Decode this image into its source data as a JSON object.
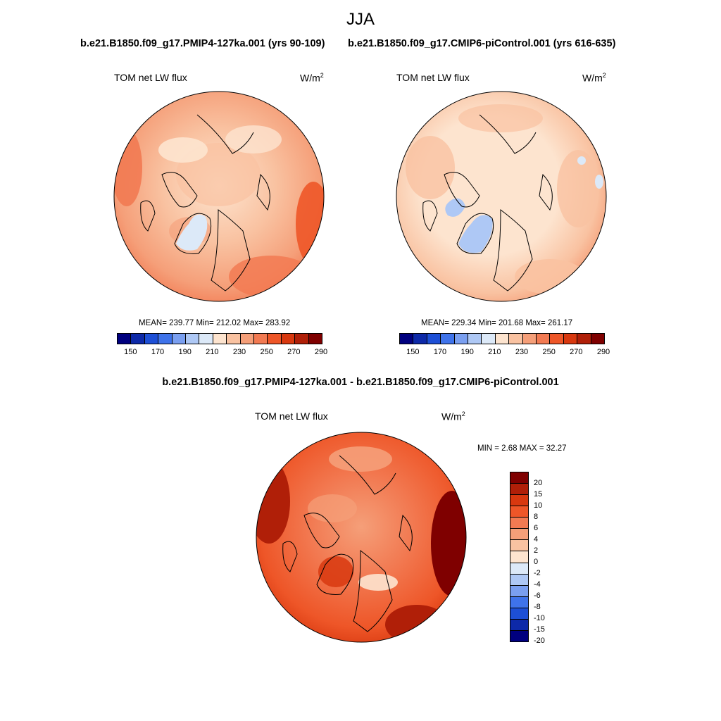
{
  "title": "JJA",
  "panel_left": {
    "case": "b.e21.B1850.f09_g17.PMIP4-127ka.001 (yrs 90-109)",
    "variable": "TOM net LW flux",
    "units": "W/m",
    "units_sup": "2",
    "stats": "MEAN= 239.77  Min= 212.02  Max= 283.92",
    "mean": 239.77,
    "min": 212.02,
    "max": 283.92
  },
  "panel_right": {
    "case": "b.e21.B1850.f09_g17.CMIP6-piControl.001 (yrs 616-635)",
    "variable": "TOM net LW flux",
    "units": "W/m",
    "units_sup": "2",
    "stats": "MEAN= 229.34  Min= 201.68  Max= 261.17",
    "mean": 229.34,
    "min": 201.68,
    "max": 261.17
  },
  "panel_diff": {
    "case": "b.e21.B1850.f09_g17.PMIP4-127ka.001 - b.e21.B1850.f09_g17.CMIP6-piControl.001",
    "variable": "TOM net LW flux",
    "units": "W/m",
    "units_sup": "2",
    "stats": "MIN =   2.68 MAX =  32.27",
    "min": 2.68,
    "max": 32.27
  },
  "colorbar_abs": {
    "labels": [
      "150",
      "170",
      "190",
      "210",
      "230",
      "250",
      "270",
      "290"
    ],
    "colors": [
      "#00007f",
      "#0d29a8",
      "#1d4fd6",
      "#3f73ea",
      "#7a9ff0",
      "#aec8f5",
      "#dce9f8",
      "#fde4cf",
      "#f9c2a1",
      "#f59f79",
      "#f27a52",
      "#ee5628",
      "#d8380f",
      "#b01f08",
      "#7f0000"
    ]
  },
  "colorbar_diff": {
    "labels": [
      "20",
      "15",
      "10",
      "8",
      "6",
      "4",
      "2",
      "0",
      "-2",
      "-4",
      "-6",
      "-8",
      "-10",
      "-15",
      "-20"
    ],
    "colors": [
      "#7f0000",
      "#b01f08",
      "#d8380f",
      "#ee5628",
      "#f27a52",
      "#f59f79",
      "#f9c2a1",
      "#fde4cf",
      "#dce9f8",
      "#aec8f5",
      "#7a9ff0",
      "#3f73ea",
      "#1d4fd6",
      "#0d29a8",
      "#00007f"
    ]
  }
}
